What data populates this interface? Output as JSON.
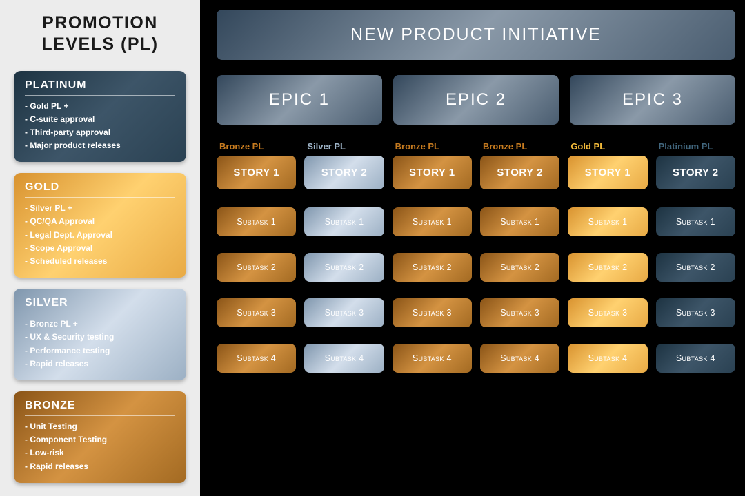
{
  "colors": {
    "background": "#000000",
    "sidebar_bg": "#ececec",
    "sidebar_title": "#1a1a1a",
    "gradients": {
      "platinum": [
        "#1d3342",
        "#3d5568",
        "#2a4152"
      ],
      "gold": [
        "#d8922f",
        "#ffd170",
        "#e8aa45"
      ],
      "silver": [
        "#7f96ad",
        "#d3deeb",
        "#9cb0c4"
      ],
      "bronze": [
        "#8a5417",
        "#d49342",
        "#a36a22"
      ],
      "header": [
        "#33475b",
        "#8a99a8",
        "#4a5d70"
      ]
    },
    "pl_label": {
      "bronze": "#c57a1f",
      "silver": "#9fb5c9",
      "gold": "#f1b93a",
      "platinum": "#41667d"
    }
  },
  "sidebar": {
    "title_line1": "PROMOTION",
    "title_line2": "LEVELS (PL)",
    "levels": [
      {
        "key": "platinum",
        "title": "PLATINUM",
        "items": [
          "Gold PL +",
          "C-suite approval",
          "Third-party approval",
          "Major product releases"
        ]
      },
      {
        "key": "gold",
        "title": "GOLD",
        "items": [
          "Silver PL +",
          "QC/QA Approval",
          "Legal Dept. Approval",
          "Scope Approval",
          "Scheduled releases"
        ]
      },
      {
        "key": "silver",
        "title": "SILVER",
        "items": [
          "Bronze PL +",
          "UX & Security testing",
          "Performance testing",
          "Rapid releases"
        ]
      },
      {
        "key": "bronze",
        "title": "BRONZE",
        "items": [
          "Unit Testing",
          "Component Testing",
          "Low-risk",
          "Rapid releases"
        ]
      }
    ]
  },
  "main": {
    "header": "NEW PRODUCT INITIATIVE",
    "epics": [
      "EPIC 1",
      "EPIC 2",
      "EPIC 3"
    ],
    "stories": [
      {
        "pl_label": "Bronze PL",
        "pl_key": "bronze",
        "label": "STORY 1"
      },
      {
        "pl_label": "Silver PL",
        "pl_key": "silver",
        "label": "STORY 2"
      },
      {
        "pl_label": "Bronze PL",
        "pl_key": "bronze",
        "label": "STORY 1"
      },
      {
        "pl_label": "Bronze PL",
        "pl_key": "bronze",
        "label": "STORY 2"
      },
      {
        "pl_label": "Gold PL",
        "pl_key": "gold",
        "label": "STORY 1"
      },
      {
        "pl_label": "Platinium PL",
        "pl_key": "platinum",
        "label": "STORY 2"
      }
    ],
    "subtask_labels": [
      "Subtask 1",
      "Subtask 2",
      "Subtask 3",
      "Subtask 4"
    ]
  }
}
